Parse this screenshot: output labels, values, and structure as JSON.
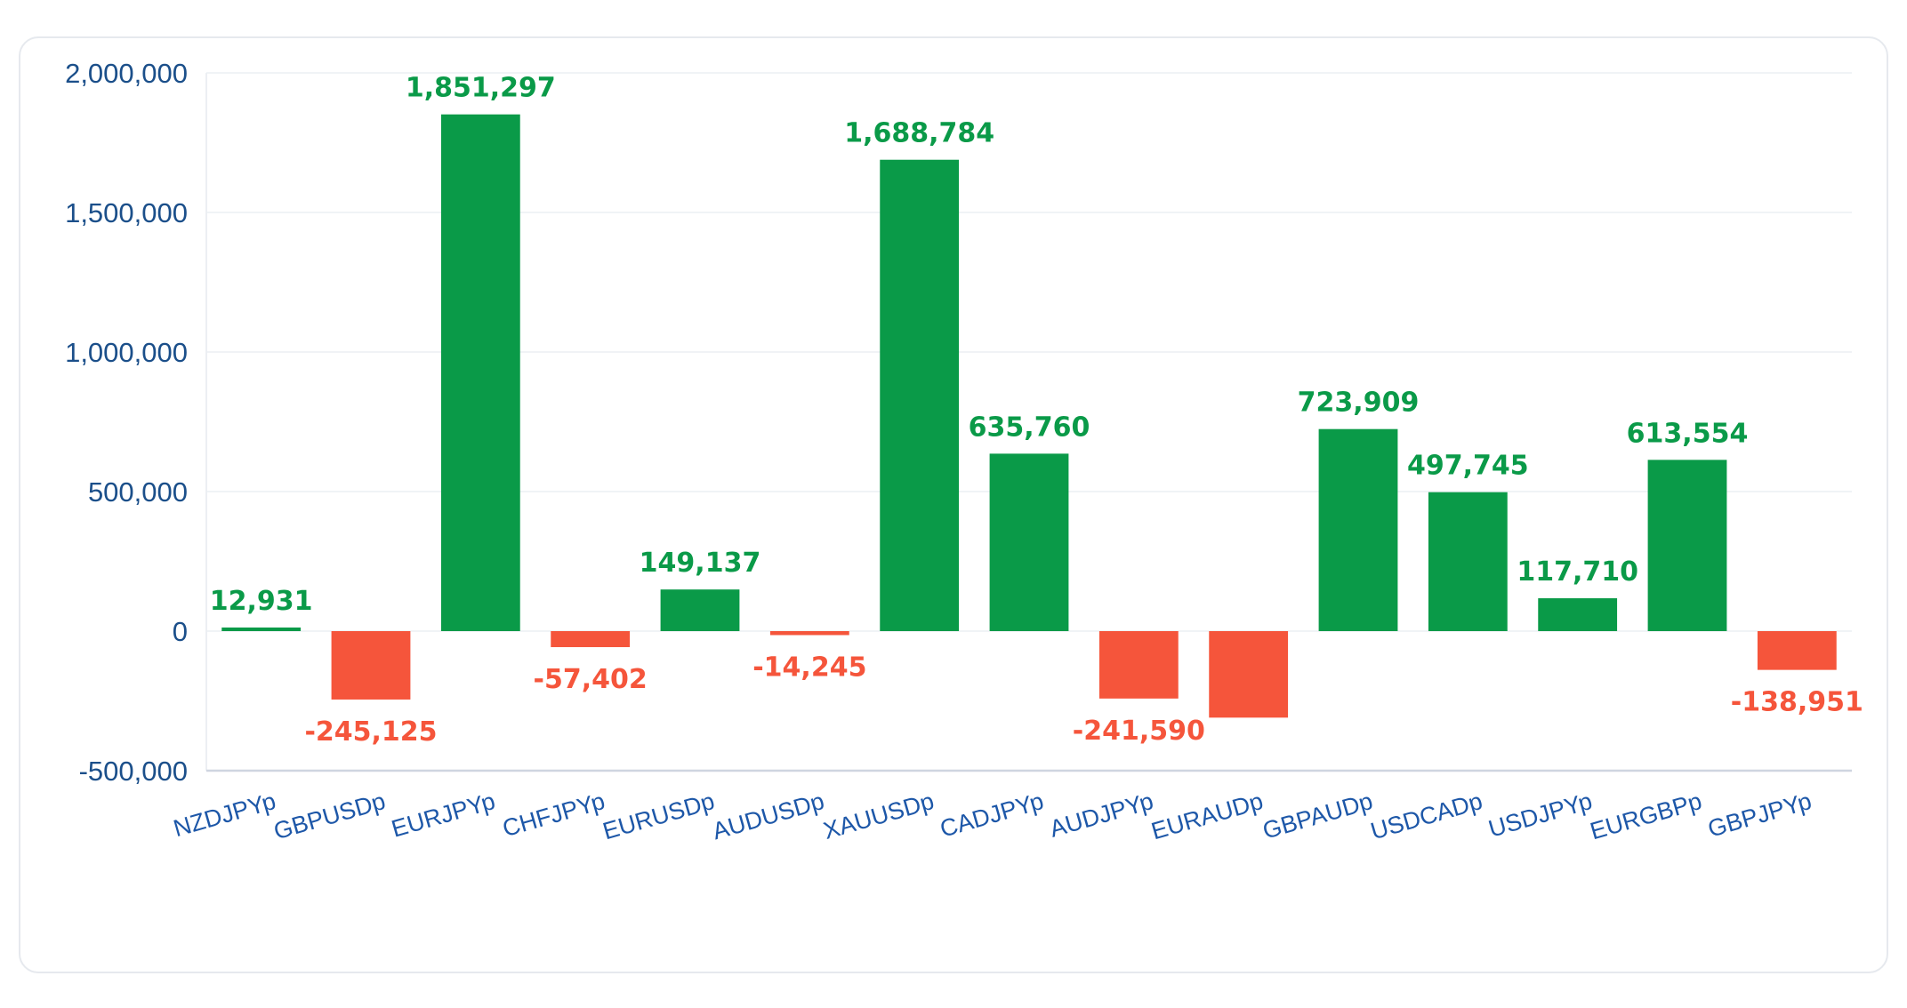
{
  "chart_data": {
    "type": "bar",
    "title": "",
    "xlabel": "",
    "ylabel": "",
    "categories": [
      "NZDJPYp",
      "GBPUSDp",
      "EURJPYp",
      "CHFJPYp",
      "EURUSDp",
      "AUDUSDp",
      "XAUUSDp",
      "CADJPYp",
      "AUDJPYp",
      "EURAUDp",
      "GBPAUDp",
      "USDCADp",
      "USDJPYp",
      "EURGBPp",
      "GBPJPYp"
    ],
    "values": [
      12931,
      -245125,
      1851297,
      -57402,
      149137,
      -14245,
      1688784,
      635760,
      -241590,
      -310000,
      723909,
      497745,
      117710,
      613554,
      -138951
    ],
    "data_labels": [
      "12,931",
      "-245,125",
      "1,851,297",
      "-57,402",
      "149,137",
      "-14,245",
      "1,688,784",
      "635,760",
      "-241,590",
      "",
      "723,909",
      "497,745",
      "117,710",
      "613,554",
      "-138,951"
    ],
    "ylim": [
      -500000,
      2000000
    ],
    "yticks": [
      -500000,
      0,
      500000,
      1000000,
      1500000,
      2000000
    ],
    "ytick_labels": [
      "-500,000",
      "0",
      "500,000",
      "1,000,000",
      "1,500,000",
      "2,000,000"
    ],
    "grid": true,
    "legend": "none",
    "colors": {
      "positive": "#0a9a48",
      "negative": "#f5553b",
      "axis_text": "#1b4f8a",
      "category_text": "#1d57a8",
      "grid": "#eceff3"
    }
  }
}
